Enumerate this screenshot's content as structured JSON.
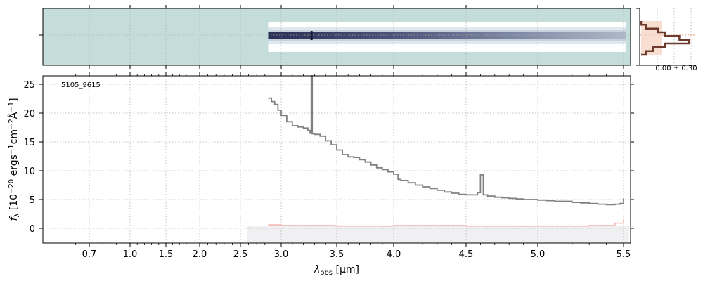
{
  "chart_data": [
    {
      "type": "heatmap",
      "panel": "2D spectrum",
      "x_tick_positions_um": [
        0.7,
        1.0,
        1.5,
        2.0,
        2.5,
        3.0,
        3.5,
        4.0,
        4.5,
        5.0,
        5.5
      ],
      "trace_x_range_um": [
        2.84,
        5.5
      ],
      "grid": true
    },
    {
      "type": "line",
      "panel": "cross-dispersion profile",
      "annotation": "0.00 ± 0.30",
      "profile_x": [
        0.0,
        0.1,
        0.35,
        0.5,
        0.8,
        1.0,
        0.5,
        0.25,
        0.1,
        0.0
      ],
      "grid": true
    },
    {
      "type": "line",
      "panel": "1D spectrum",
      "title": "5105_9615",
      "xlabel": "λobs [μm]",
      "ylabel": "fλ [10⁻²⁰ ergs⁻¹cm⁻²Å⁻¹]",
      "xlim": [
        0.55,
        5.52
      ],
      "ylim": [
        -2.6,
        26.5
      ],
      "x_ticks": [
        0.7,
        1.0,
        1.5,
        2.0,
        2.5,
        3.0,
        3.5,
        4.0,
        4.5,
        5.0,
        5.5
      ],
      "x_tick_labels": [
        "0.7",
        "1.0",
        "1.5",
        "2.0",
        "2.5",
        "3.0",
        "3.5",
        "4.0",
        "4.5",
        "5.0",
        "5.5"
      ],
      "y_ticks": [
        0,
        5,
        10,
        15,
        20,
        25
      ],
      "y_tick_labels": [
        "0",
        "5",
        "10",
        "15",
        "20",
        "25"
      ],
      "grid": true,
      "series": [
        {
          "x": [
            2.84,
            2.88,
            2.92,
            2.96,
            3.0,
            3.05,
            3.1,
            3.15,
            3.2,
            3.24,
            3.26,
            3.27,
            3.28,
            3.3,
            3.35,
            3.4,
            3.45,
            3.5,
            3.55,
            3.6,
            3.65,
            3.7,
            3.75,
            3.8,
            3.85,
            3.9,
            3.95,
            4.0,
            4.03,
            4.05,
            4.1,
            4.15,
            4.2,
            4.25,
            4.3,
            4.35,
            4.4,
            4.45,
            4.5,
            4.55,
            4.58,
            4.6,
            4.62,
            4.65,
            4.7,
            4.75,
            4.8,
            4.85,
            4.9,
            4.95,
            5.0,
            5.05,
            5.1,
            5.15,
            5.2,
            5.25,
            5.3,
            5.35,
            5.4,
            5.45,
            5.48,
            5.5
          ],
          "y": [
            22.6,
            22.0,
            21.5,
            20.5,
            19.6,
            18.5,
            17.8,
            17.6,
            17.4,
            17.0,
            16.5,
            26.5,
            16.4,
            16.3,
            16.0,
            15.2,
            14.5,
            13.6,
            12.8,
            12.4,
            12.3,
            11.9,
            11.5,
            11.0,
            10.5,
            10.2,
            9.8,
            9.4,
            8.5,
            8.3,
            7.9,
            7.5,
            7.2,
            6.9,
            6.6,
            6.3,
            6.1,
            5.9,
            5.8,
            5.8,
            6.2,
            9.3,
            5.8,
            5.6,
            5.4,
            5.3,
            5.2,
            5.1,
            5.0,
            5.0,
            4.9,
            4.8,
            4.7,
            4.7,
            4.5,
            4.4,
            4.3,
            4.2,
            4.1,
            4.2,
            4.3,
            5.2
          ]
        },
        {
          "x": [
            2.84,
            3.0,
            3.5,
            3.9,
            4.0,
            4.5,
            5.0,
            5.3,
            5.45,
            5.5
          ],
          "y": [
            0.6,
            0.5,
            0.4,
            0.4,
            0.5,
            0.4,
            0.4,
            0.5,
            0.9,
            1.6
          ]
        }
      ]
    }
  ]
}
